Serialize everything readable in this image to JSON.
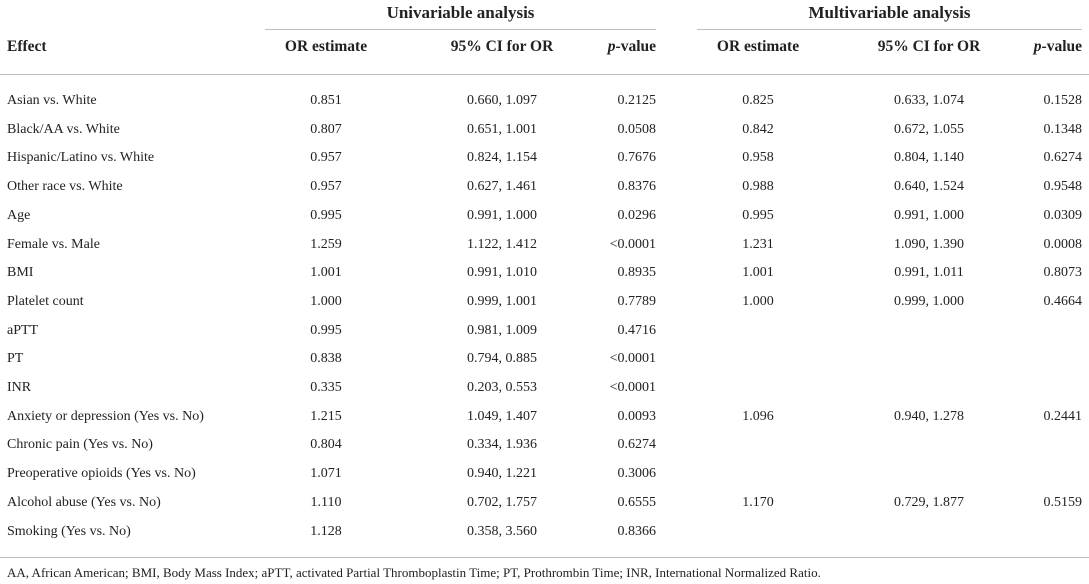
{
  "groups": {
    "univariable": "Univariable analysis",
    "multivariable": "Multivariable analysis"
  },
  "columns": {
    "effect": "Effect",
    "or_estimate": "OR estimate",
    "ci": "95% CI for OR",
    "p_italic": "p",
    "p_suffix": "-value"
  },
  "rows": [
    {
      "effect": "Asian vs. White",
      "u_or": "0.851",
      "u_ci": "0.660, 1.097",
      "u_p": "0.2125",
      "m_or": "0.825",
      "m_ci": "0.633, 1.074",
      "m_p": "0.1528"
    },
    {
      "effect": "Black/AA vs. White",
      "u_or": "0.807",
      "u_ci": "0.651, 1.001",
      "u_p": "0.0508",
      "m_or": "0.842",
      "m_ci": "0.672, 1.055",
      "m_p": "0.1348"
    },
    {
      "effect": "Hispanic/Latino vs. White",
      "u_or": "0.957",
      "u_ci": "0.824, 1.154",
      "u_p": "0.7676",
      "m_or": "0.958",
      "m_ci": "0.804, 1.140",
      "m_p": "0.6274"
    },
    {
      "effect": "Other race vs. White",
      "u_or": "0.957",
      "u_ci": "0.627, 1.461",
      "u_p": "0.8376",
      "m_or": "0.988",
      "m_ci": "0.640, 1.524",
      "m_p": "0.9548"
    },
    {
      "effect": "Age",
      "u_or": "0.995",
      "u_ci": "0.991, 1.000",
      "u_p": "0.0296",
      "m_or": "0.995",
      "m_ci": "0.991, 1.000",
      "m_p": "0.0309"
    },
    {
      "effect": "Female vs. Male",
      "u_or": "1.259",
      "u_ci": "1.122, 1.412",
      "u_p": "<0.0001",
      "m_or": "1.231",
      "m_ci": "1.090, 1.390",
      "m_p": "0.0008"
    },
    {
      "effect": "BMI",
      "u_or": "1.001",
      "u_ci": "0.991, 1.010",
      "u_p": "0.8935",
      "m_or": "1.001",
      "m_ci": "0.991, 1.011",
      "m_p": "0.8073"
    },
    {
      "effect": "Platelet count",
      "u_or": "1.000",
      "u_ci": "0.999, 1.001",
      "u_p": "0.7789",
      "m_or": "1.000",
      "m_ci": "0.999, 1.000",
      "m_p": "0.4664"
    },
    {
      "effect": "aPTT",
      "u_or": "0.995",
      "u_ci": "0.981, 1.009",
      "u_p": "0.4716",
      "m_or": "",
      "m_ci": "",
      "m_p": ""
    },
    {
      "effect": "PT",
      "u_or": "0.838",
      "u_ci": "0.794, 0.885",
      "u_p": "<0.0001",
      "m_or": "",
      "m_ci": "",
      "m_p": ""
    },
    {
      "effect": "INR",
      "u_or": "0.335",
      "u_ci": "0.203, 0.553",
      "u_p": "<0.0001",
      "m_or": "",
      "m_ci": "",
      "m_p": ""
    },
    {
      "effect": "Anxiety or depression (Yes vs. No)",
      "u_or": "1.215",
      "u_ci": "1.049, 1.407",
      "u_p": "0.0093",
      "m_or": "1.096",
      "m_ci": "0.940, 1.278",
      "m_p": "0.2441"
    },
    {
      "effect": "Chronic pain (Yes vs. No)",
      "u_or": "0.804",
      "u_ci": "0.334, 1.936",
      "u_p": "0.6274",
      "m_or": "",
      "m_ci": "",
      "m_p": ""
    },
    {
      "effect": "Preoperative opioids (Yes vs. No)",
      "u_or": "1.071",
      "u_ci": "0.940, 1.221",
      "u_p": "0.3006",
      "m_or": "",
      "m_ci": "",
      "m_p": ""
    },
    {
      "effect": "Alcohol abuse (Yes vs. No)",
      "u_or": "1.110",
      "u_ci": "0.702, 1.757",
      "u_p": "0.6555",
      "m_or": "1.170",
      "m_ci": "0.729, 1.877",
      "m_p": "0.5159"
    },
    {
      "effect": "Smoking (Yes vs. No)",
      "u_or": "1.128",
      "u_ci": "0.358, 3.560",
      "u_p": "0.8366",
      "m_or": "",
      "m_ci": "",
      "m_p": ""
    }
  ],
  "footnote": "AA, African American; BMI, Body Mass Index; aPTT, activated Partial Thromboplastin Time; PT, Prothrombin Time; INR, International Normalized Ratio."
}
